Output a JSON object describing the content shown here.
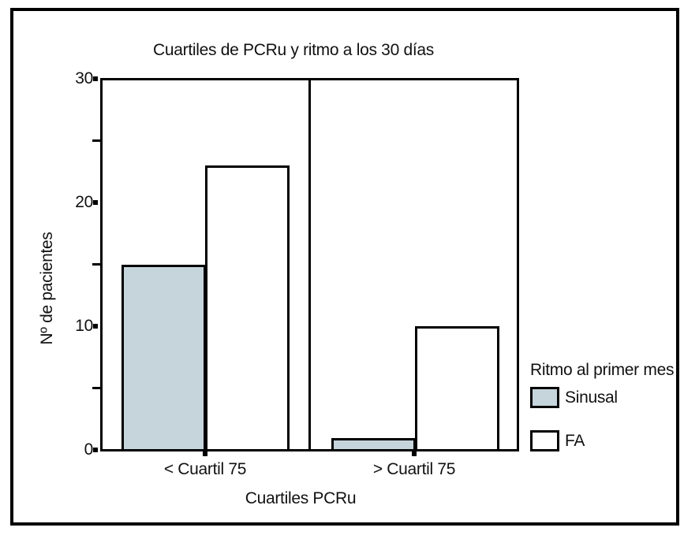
{
  "figure": {
    "border_color": "#000000",
    "background_color": "#ffffff"
  },
  "chart_data": {
    "type": "bar",
    "title": "Cuartiles de PCRu y ritmo a los 30 días",
    "xlabel": "Cuartiles PCRu",
    "ylabel": "Nº de pacientes",
    "categories": [
      "< Cuartil 75",
      "> Cuartil 75"
    ],
    "series": [
      {
        "name": "Sinusal",
        "values": [
          15,
          1
        ],
        "color": "#c6d4dc"
      },
      {
        "name": "FA",
        "values": [
          23,
          10
        ],
        "color": "#ffffff"
      }
    ],
    "ylim": [
      0,
      30
    ],
    "yticks": [
      "0",
      "10",
      "20",
      "30"
    ],
    "yminorticks": [
      5,
      15,
      25
    ],
    "grid": false,
    "legend": {
      "title": "Ritmo al primer mes",
      "position": "outside-right-bottom"
    }
  }
}
